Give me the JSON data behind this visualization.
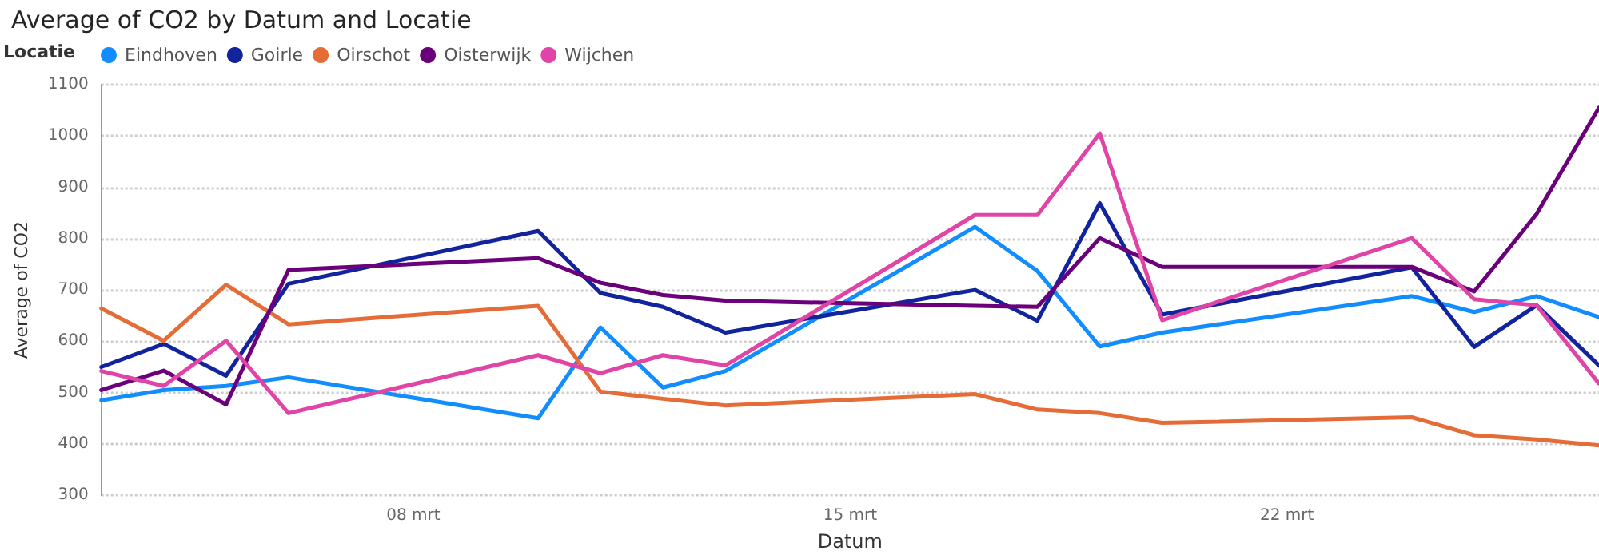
{
  "chart_data": {
    "type": "line",
    "title": "Average of CO2 by Datum and Locatie",
    "xlabel": "Datum",
    "ylabel": "Average of CO2",
    "legend_title": "Locatie",
    "legend": "top left",
    "grid": "y",
    "marker": "none",
    "line_style": "solid",
    "x": [
      "--03-03",
      "--03-04",
      "--03-05",
      "--03-06",
      "--03-10",
      "--03-11",
      "--03-12",
      "--03-13",
      "--03-17",
      "--03-18",
      "--03-19",
      "--03-20",
      "--03-24",
      "--03-25",
      "--03-26",
      "--03-27"
    ],
    "xlim": [
      "--03-03",
      "--03-27"
    ],
    "xticks": [
      {
        "value": "--03-08",
        "label": "08 mrt"
      },
      {
        "value": "--03-15",
        "label": "15 mrt"
      },
      {
        "value": "--03-22",
        "label": "22 mrt"
      }
    ],
    "ylim": [
      300,
      1100
    ],
    "yticks": [
      300,
      400,
      500,
      600,
      700,
      800,
      900,
      1000,
      1100
    ],
    "series": [
      {
        "name": "Eindhoven",
        "color": "#118dff",
        "values": [
          485,
          505,
          513,
          530,
          450,
          627,
          510,
          542,
          823,
          737,
          590,
          617,
          688,
          657,
          688,
          647
        ]
      },
      {
        "name": "Goirle",
        "color": "#12239e",
        "values": [
          550,
          595,
          533,
          712,
          815,
          694,
          667,
          617,
          700,
          640,
          869,
          652,
          744,
          589,
          670,
          553
        ]
      },
      {
        "name": "Oirschot",
        "color": "#e66c37",
        "values": [
          664,
          601,
          710,
          633,
          669,
          502,
          488,
          475,
          497,
          467,
          460,
          441,
          452,
          417,
          409,
          397
        ]
      },
      {
        "name": "Oisterwijk",
        "color": "#6b007b",
        "values": [
          505,
          543,
          477,
          739,
          762,
          714,
          690,
          679,
          669,
          667,
          801,
          745,
          745,
          697,
          848,
          1055
        ]
      },
      {
        "name": "Wijchen",
        "color": "#e044a7",
        "values": [
          542,
          513,
          601,
          460,
          573,
          538,
          573,
          553,
          846,
          846,
          1005,
          641,
          801,
          682,
          670,
          518
        ]
      }
    ]
  }
}
